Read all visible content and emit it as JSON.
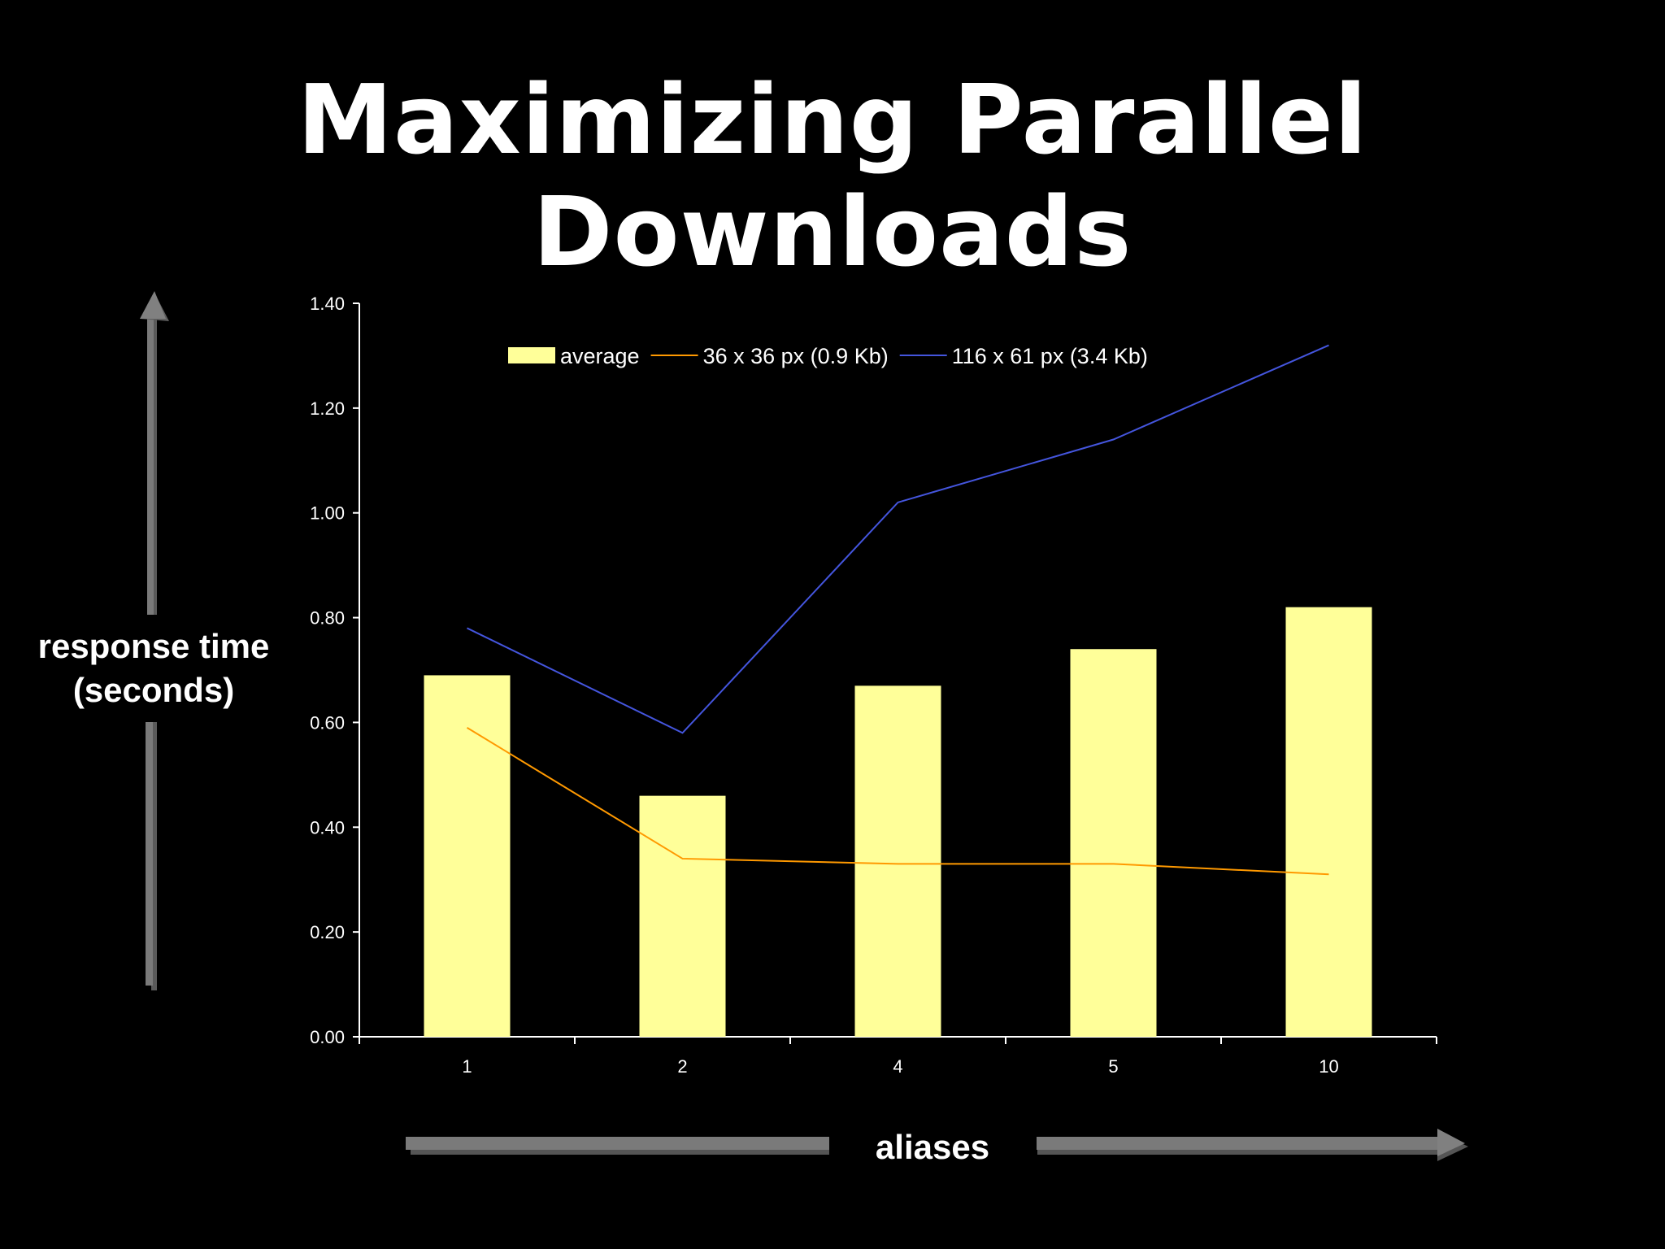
{
  "slide": {
    "title": "Maximizing Parallel Downloads"
  },
  "colors": {
    "background": "#000000",
    "bar": "#FFFF99",
    "small_line": "#FF9900",
    "large_line": "#4455DD",
    "axis": "#FFFFFF",
    "arrow": "#7A7A7A"
  },
  "chart_data": {
    "type": "bar",
    "title": "",
    "xlabel": "aliases",
    "ylabel_lines": [
      "response time",
      "(seconds)"
    ],
    "categories": [
      "1",
      "2",
      "4",
      "5",
      "10"
    ],
    "ylim": [
      0,
      1.4
    ],
    "yticks": [
      "0.00",
      "0.20",
      "0.40",
      "0.60",
      "0.80",
      "1.00",
      "1.20",
      "1.40"
    ],
    "grid": false,
    "legend_position": "top",
    "series": [
      {
        "name": "average",
        "type": "bar",
        "values": [
          0.69,
          0.46,
          0.67,
          0.74,
          0.82
        ]
      },
      {
        "name": "36 x 36 px (0.9 Kb)",
        "type": "line",
        "values": [
          0.59,
          0.34,
          0.33,
          0.33,
          0.31
        ]
      },
      {
        "name": "116 x 61 px (3.4 Kb)",
        "type": "line",
        "values": [
          0.78,
          0.58,
          1.02,
          1.14,
          1.32
        ]
      }
    ]
  }
}
